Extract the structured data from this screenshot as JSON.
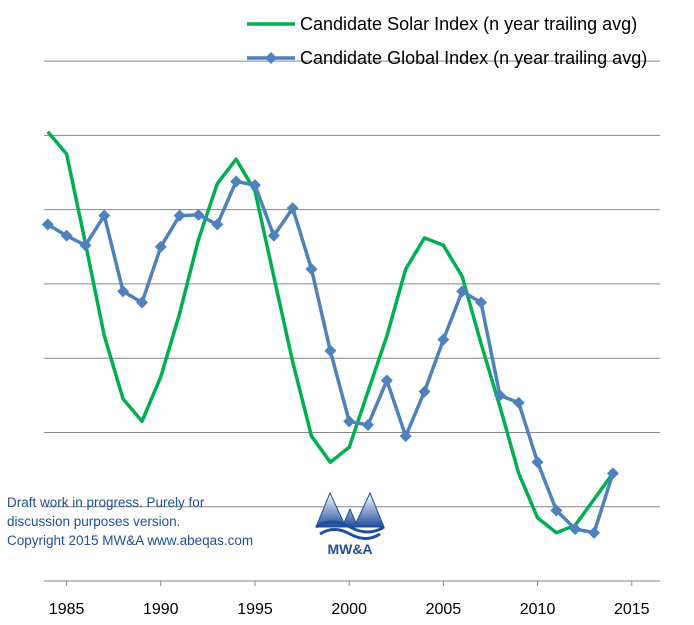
{
  "chart_data": {
    "type": "line",
    "title": "",
    "xlabel": "",
    "ylabel": "",
    "xlim": [
      1983.8,
      2016.5
    ],
    "ylim": [
      0,
      7.5
    ],
    "x_ticks": [
      1985,
      1990,
      1995,
      2000,
      2005,
      2010,
      2015
    ],
    "x_tick_labels": [
      "1985",
      "1990",
      "1995",
      "2000",
      "2005",
      "2010",
      "2015"
    ],
    "gridlines_y": [
      1,
      2,
      3,
      4,
      5,
      6,
      7
    ],
    "grid": "horizontal",
    "legend_position": "top-right",
    "series": [
      {
        "name": "Candidate Solar Index (n year trailing avg)",
        "color": "#00b050",
        "marker": "none",
        "x": [
          1984,
          1985,
          1986,
          1987,
          1988,
          1989,
          1990,
          1991,
          1992,
          1993,
          1994,
          1995,
          1996,
          1997,
          1998,
          1999,
          2000,
          2001,
          2002,
          2003,
          2004,
          2005,
          2006,
          2007,
          2008,
          2009,
          2010,
          2011,
          2012,
          2013,
          2014
        ],
        "y": [
          6.05,
          5.75,
          4.55,
          3.3,
          2.45,
          2.15,
          2.75,
          3.6,
          4.6,
          5.35,
          5.68,
          5.25,
          4.1,
          2.95,
          1.95,
          1.6,
          1.8,
          2.55,
          3.3,
          4.2,
          4.62,
          4.52,
          4.1,
          3.2,
          2.35,
          1.45,
          0.85,
          0.65,
          0.75,
          1.1,
          1.45
        ]
      },
      {
        "name": "Candidate Global Index (n year trailing avg)",
        "color": "#4f81bd",
        "marker": "diamond",
        "x": [
          1984,
          1985,
          1986,
          1987,
          1988,
          1989,
          1990,
          1991,
          1992,
          1993,
          1994,
          1995,
          1996,
          1997,
          1998,
          1999,
          2000,
          2001,
          2002,
          2003,
          2004,
          2005,
          2006,
          2007,
          2008,
          2009,
          2010,
          2011,
          2012,
          2013,
          2014
        ],
        "y": [
          4.8,
          4.65,
          4.52,
          4.92,
          3.9,
          3.75,
          4.5,
          4.92,
          4.93,
          4.8,
          5.38,
          5.33,
          4.65,
          5.02,
          4.2,
          3.1,
          2.15,
          2.1,
          2.7,
          1.95,
          2.55,
          3.25,
          3.9,
          3.75,
          2.5,
          2.4,
          1.6,
          0.95,
          0.7,
          0.65,
          1.45
        ]
      }
    ]
  },
  "note": {
    "lines": [
      "Draft work in progress.  Purely for",
      "discussion purposes  version.",
      "Copyright 2015  MW&A www.abeqas.com"
    ]
  },
  "logo": {
    "text": "MW&A",
    "color": "#1f4e9c"
  }
}
